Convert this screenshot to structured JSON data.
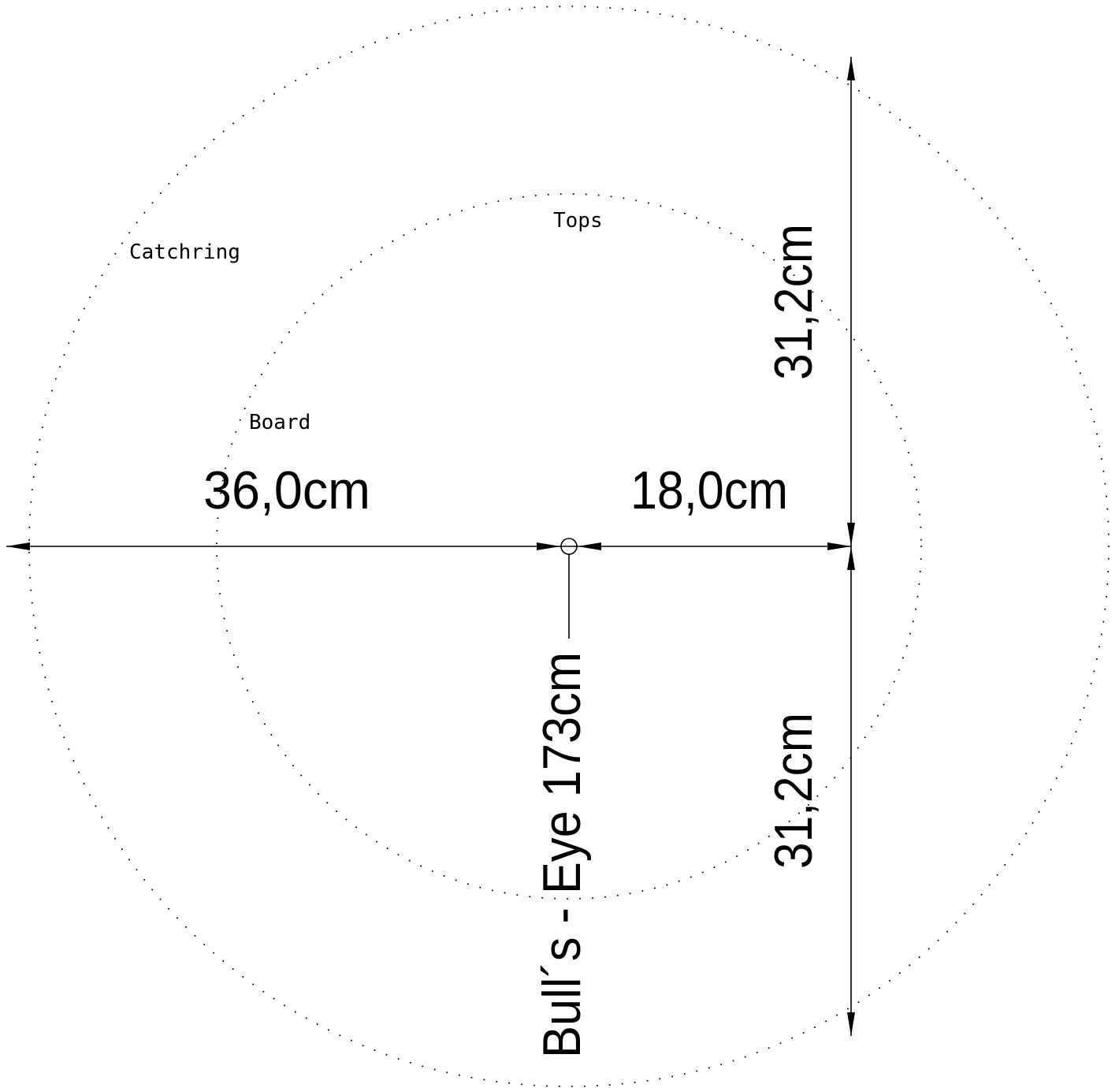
{
  "labels": {
    "catchring": "Catchring",
    "tops": "Tops",
    "board": "Board",
    "width_left": "36,0cm",
    "width_right": "18,0cm",
    "height_upper": "31,2cm",
    "height_lower": "31,2cm",
    "bullseye_height": "Bull´s - Eye 173cm"
  },
  "colors": {
    "ink": "#000000",
    "background": "#ffffff"
  }
}
